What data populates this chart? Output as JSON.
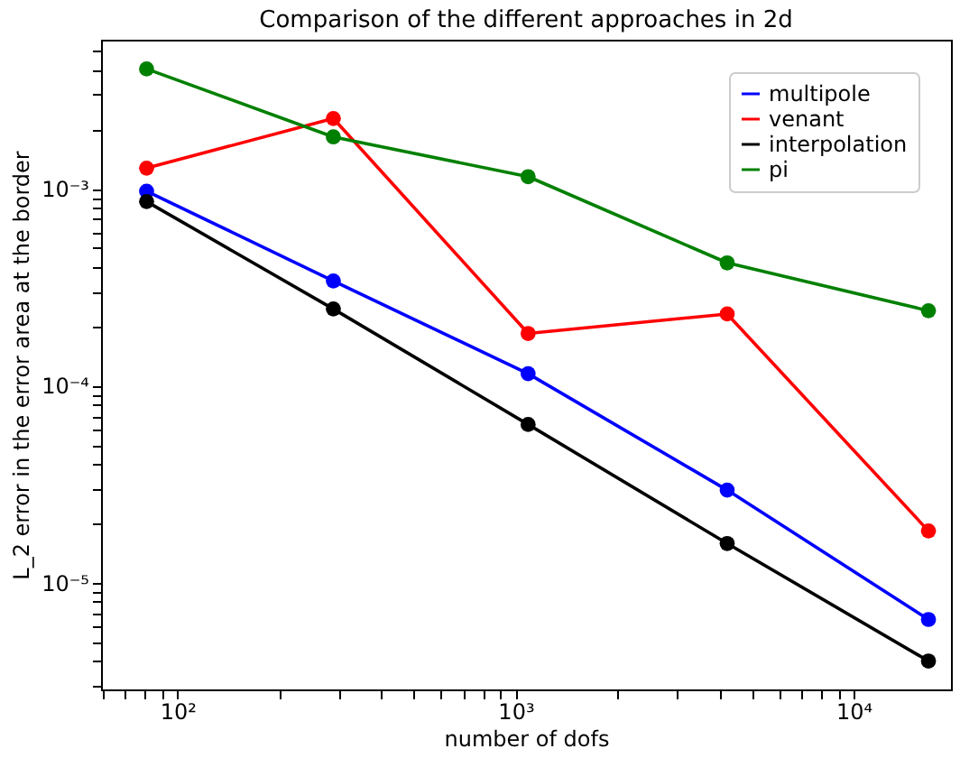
{
  "chart_data": {
    "type": "line",
    "title": "Comparison of the different approaches in 2d",
    "xlabel": "number of dofs",
    "ylabel": "L_2 error in the error area at the border",
    "x": [
      81,
      289,
      1089,
      4225,
      16641
    ],
    "series": [
      {
        "name": "multipole",
        "color": "#0000ff",
        "values": [
          0.00097,
          0.00034,
          0.000115,
          2.95e-05,
          6.5e-06
        ]
      },
      {
        "name": "venant",
        "color": "#ff0000",
        "values": [
          0.00127,
          0.00227,
          0.000184,
          0.000231,
          1.83e-05
        ]
      },
      {
        "name": "interpolation",
        "color": "#000000",
        "values": [
          0.00086,
          0.000245,
          6.35e-05,
          1.58e-05,
          4e-06
        ]
      },
      {
        "name": "pi",
        "color": "#008000",
        "values": [
          0.00405,
          0.00183,
          0.00115,
          0.00042,
          0.00024
        ]
      }
    ],
    "log": "xy",
    "marker": "circle",
    "line_style": "solid",
    "grid": false,
    "legend": "top right",
    "xlim": [
      59.4,
      19400
    ],
    "ylim": [
      2.87e-06,
      0.0057
    ],
    "xticks": [
      {
        "value": 60,
        "label": null
      },
      {
        "value": 70,
        "label": null
      },
      {
        "value": 80,
        "label": null
      },
      {
        "value": 90,
        "label": null
      },
      {
        "value": 100,
        "label": "10²"
      },
      {
        "value": 200,
        "label": null
      },
      {
        "value": 300,
        "label": null
      },
      {
        "value": 400,
        "label": null
      },
      {
        "value": 500,
        "label": null
      },
      {
        "value": 600,
        "label": null
      },
      {
        "value": 700,
        "label": null
      },
      {
        "value": 800,
        "label": null
      },
      {
        "value": 900,
        "label": null
      },
      {
        "value": 1000,
        "label": "10³"
      },
      {
        "value": 2000,
        "label": null
      },
      {
        "value": 3000,
        "label": null
      },
      {
        "value": 4000,
        "label": null
      },
      {
        "value": 5000,
        "label": null
      },
      {
        "value": 6000,
        "label": null
      },
      {
        "value": 7000,
        "label": null
      },
      {
        "value": 8000,
        "label": null
      },
      {
        "value": 9000,
        "label": null
      },
      {
        "value": 10000,
        "label": "10⁴"
      }
    ],
    "yticks": [
      {
        "value": 3e-06,
        "label": null
      },
      {
        "value": 4e-06,
        "label": null
      },
      {
        "value": 5e-06,
        "label": null
      },
      {
        "value": 6e-06,
        "label": null
      },
      {
        "value": 7e-06,
        "label": null
      },
      {
        "value": 8e-06,
        "label": null
      },
      {
        "value": 9e-06,
        "label": null
      },
      {
        "value": 1e-05,
        "label": "10⁻⁵"
      },
      {
        "value": 2e-05,
        "label": null
      },
      {
        "value": 3e-05,
        "label": null
      },
      {
        "value": 4e-05,
        "label": null
      },
      {
        "value": 5e-05,
        "label": null
      },
      {
        "value": 6e-05,
        "label": null
      },
      {
        "value": 7e-05,
        "label": null
      },
      {
        "value": 8e-05,
        "label": null
      },
      {
        "value": 9e-05,
        "label": null
      },
      {
        "value": 0.0001,
        "label": "10⁻⁴"
      },
      {
        "value": 0.0002,
        "label": null
      },
      {
        "value": 0.0003,
        "label": null
      },
      {
        "value": 0.0004,
        "label": null
      },
      {
        "value": 0.0005,
        "label": null
      },
      {
        "value": 0.0006,
        "label": null
      },
      {
        "value": 0.0007,
        "label": null
      },
      {
        "value": 0.0008,
        "label": null
      },
      {
        "value": 0.0009,
        "label": null
      },
      {
        "value": 0.001,
        "label": "10⁻³"
      },
      {
        "value": 0.002,
        "label": null
      },
      {
        "value": 0.003,
        "label": null
      },
      {
        "value": 0.004,
        "label": null
      },
      {
        "value": 0.005,
        "label": null
      }
    ]
  }
}
